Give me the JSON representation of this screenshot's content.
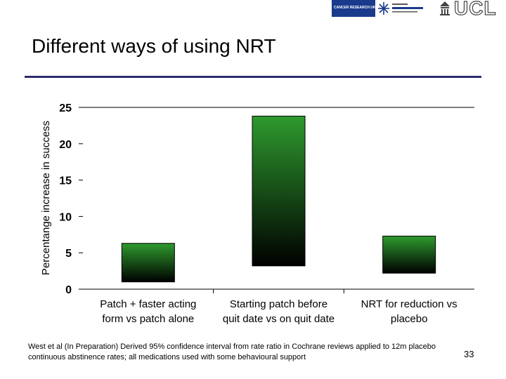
{
  "header": {
    "title": "Different ways of using NRT",
    "logos": {
      "cruk_text": "CANCER RESEARCH UK",
      "cobranding_text": "",
      "ucl_text": "UCL"
    }
  },
  "chart_data": {
    "type": "bar",
    "chart_style": "floating range bars (confidence intervals), green-to-black vertical gradient",
    "ylabel": "Percentange increase in success",
    "ylim": [
      0,
      25
    ],
    "yticks": [
      0,
      5,
      10,
      15,
      20,
      25
    ],
    "grid": "horizontal line at 25 only",
    "categories": [
      "Patch + faster acting form vs patch alone",
      "Starting patch before quit date vs on quit date",
      "NRT for reduction vs placebo"
    ],
    "category_labels": [
      [
        "Patch + faster acting",
        "form vs patch alone"
      ],
      [
        "Starting patch before",
        "quit date vs on quit date"
      ],
      [
        "NRT for reduction vs",
        "placebo"
      ]
    ],
    "ranges": [
      {
        "low": 1.0,
        "high": 6.3
      },
      {
        "low": 3.2,
        "high": 23.8
      },
      {
        "low": 2.2,
        "high": 7.3
      }
    ],
    "bar_colors": {
      "top": "#2e9a2e",
      "bottom": "#000000"
    }
  },
  "footer": {
    "note": "West et al (In Preparation) Derived 95% confidence interval from rate ratio in Cochrane reviews applied to 12m placebo continuous abstinence rates; all medications used with some behavioural support",
    "page_number": "33"
  }
}
